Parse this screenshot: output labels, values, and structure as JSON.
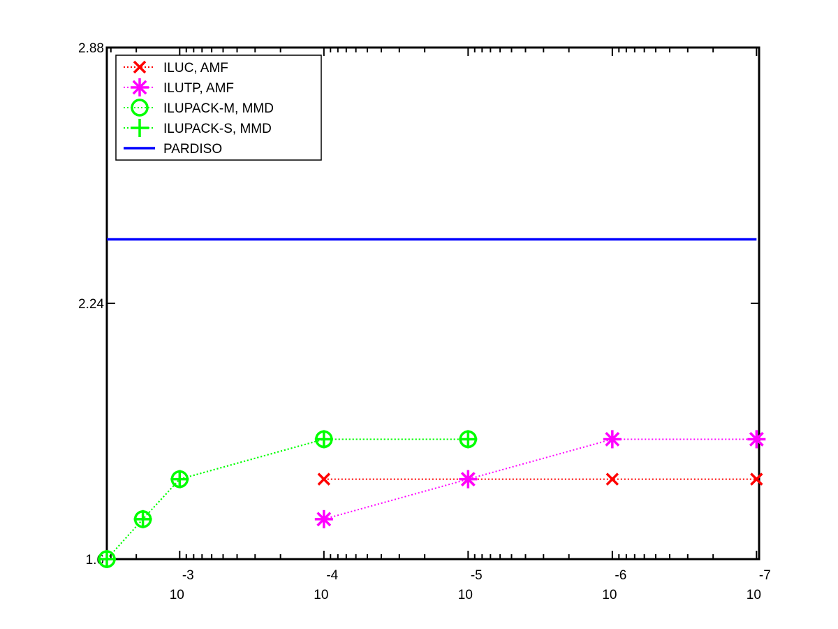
{
  "chart_data": {
    "type": "line",
    "title": "",
    "xlabel": "",
    "ylabel": "",
    "x_scale": "log",
    "x_reversed": true,
    "xlim": [
      0.0032,
      9.6e-08
    ],
    "ylim": [
      1.6,
      2.88
    ],
    "grid": false,
    "legend_position": "top-left",
    "x_ticks": [
      {
        "value": 0.001,
        "base": "10",
        "exponent": "-3"
      },
      {
        "value": 0.0001,
        "base": "10",
        "exponent": "-4"
      },
      {
        "value": 1e-05,
        "base": "10",
        "exponent": "-5"
      },
      {
        "value": 1e-06,
        "base": "10",
        "exponent": "-6"
      },
      {
        "value": 1e-07,
        "base": "10",
        "exponent": "-7"
      }
    ],
    "y_ticks": [
      {
        "value": 1.6,
        "label": "1.6"
      },
      {
        "value": 2.24,
        "label": "2.24"
      },
      {
        "value": 2.88,
        "label": "2.88"
      }
    ],
    "series": [
      {
        "name": "ILUC, AMF",
        "color": "#ff0000",
        "marker": "x",
        "line_style": "dotted",
        "points": [
          [
            0.0001,
            1.8
          ],
          [
            1e-05,
            1.8
          ],
          [
            1e-06,
            1.8
          ],
          [
            1e-07,
            1.8
          ]
        ]
      },
      {
        "name": "ILUTP, AMF",
        "color": "#ff00ff",
        "marker": "asterisk",
        "line_style": "dotted",
        "points": [
          [
            0.0001,
            1.7
          ],
          [
            1e-05,
            1.8
          ],
          [
            1e-06,
            1.9
          ],
          [
            1e-07,
            1.9
          ]
        ]
      },
      {
        "name": "ILUPACK-M, MMD",
        "color": "#00ff00",
        "marker": "circle",
        "line_style": "dotted",
        "points": [
          [
            0.0032,
            1.6
          ],
          [
            0.0018,
            1.7
          ],
          [
            0.001,
            1.8
          ],
          [
            0.0001,
            1.9
          ],
          [
            1e-05,
            1.9
          ]
        ]
      },
      {
        "name": "ILUPACK-S, MMD",
        "color": "#00ff00",
        "marker": "plus",
        "line_style": "dotted",
        "points": [
          [
            0.0032,
            1.6
          ],
          [
            0.0018,
            1.7
          ],
          [
            0.001,
            1.8
          ],
          [
            0.0001,
            1.9
          ],
          [
            1e-05,
            1.9
          ]
        ]
      },
      {
        "name": "PARDISO",
        "color": "#0000ff",
        "marker": "none",
        "line_style": "solid",
        "points": [
          [
            0.0032,
            2.4
          ],
          [
            1e-07,
            2.4
          ]
        ]
      }
    ]
  }
}
